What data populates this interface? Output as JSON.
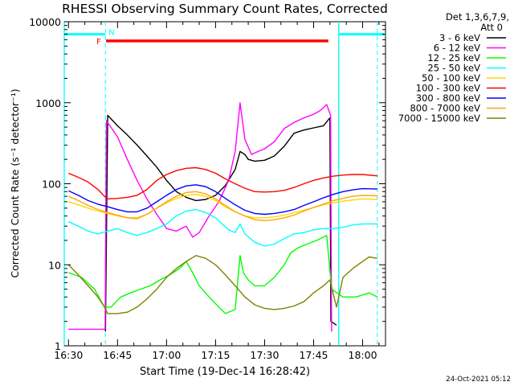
{
  "chart_data": {
    "type": "line",
    "title": "RHESSI Observing Summary Count Rates, Corrected",
    "xlabel": "Start Time (19-Dec-14 16:28:42)",
    "ylabel": "Corrected Count Rate (s⁻¹ detector⁻¹)",
    "y_scale": "log",
    "ylim": [
      1,
      10000
    ],
    "xlim_minutes_after_1630": [
      -1.3,
      97
    ],
    "x_ticks": [
      {
        "minute": 0,
        "label": "16:30"
      },
      {
        "minute": 15,
        "label": "16:45"
      },
      {
        "minute": 30,
        "label": "17:00"
      },
      {
        "minute": 45,
        "label": "17:15"
      },
      {
        "minute": 60,
        "label": "17:30"
      },
      {
        "minute": 75,
        "label": "17:45"
      },
      {
        "minute": 90,
        "label": "18:00"
      }
    ],
    "y_ticks": [
      {
        "value": 1,
        "label": "1"
      },
      {
        "value": 10,
        "label": "10"
      },
      {
        "value": 100,
        "label": "100"
      },
      {
        "value": 1000,
        "label": "1000"
      },
      {
        "value": 10000,
        "label": "10000"
      }
    ],
    "legend_header": [
      "Det 1,3,6,7,9,",
      "Att 0"
    ],
    "legend_position": "right, outside plot",
    "footer": "24-Oct-2021 05:12",
    "flags": {
      "night_label": "N",
      "night_color": "#00ffff",
      "night_intervals": [
        [
          -1.3,
          11.3
        ],
        [
          82.7,
          97
        ]
      ],
      "night_level": 7000,
      "flare_label": "F",
      "flare_color": "#ff0000",
      "flare_interval": [
        11.5,
        79.5
      ],
      "flare_level": 5800,
      "dashed_markers": [
        11.3,
        82.7,
        94.5
      ]
    },
    "series": [
      {
        "name": "3 - 6 keV",
        "color": "#000000",
        "points": [
          [
            11.3,
            1.5
          ],
          [
            12,
            700
          ],
          [
            15,
            520
          ],
          [
            18,
            400
          ],
          [
            21,
            300
          ],
          [
            24,
            220
          ],
          [
            27,
            160
          ],
          [
            30,
            110
          ],
          [
            33,
            80
          ],
          [
            36,
            68
          ],
          [
            39,
            62
          ],
          [
            42,
            64
          ],
          [
            45,
            72
          ],
          [
            48,
            95
          ],
          [
            51,
            150
          ],
          [
            52.5,
            250
          ],
          [
            54,
            230
          ],
          [
            55,
            200
          ],
          [
            57,
            190
          ],
          [
            60,
            195
          ],
          [
            63,
            220
          ],
          [
            66,
            290
          ],
          [
            69,
            420
          ],
          [
            72,
            460
          ],
          [
            75,
            490
          ],
          [
            78,
            520
          ],
          [
            80,
            650
          ],
          [
            80.3,
            2
          ],
          [
            82,
            1.8
          ]
        ]
      },
      {
        "name": "6 - 12 keV",
        "color": "#ff00ff",
        "points": [
          [
            0,
            1.6
          ],
          [
            11.2,
            1.6
          ],
          [
            11.6,
            600
          ],
          [
            15,
            380
          ],
          [
            18,
            200
          ],
          [
            21,
            110
          ],
          [
            24,
            65
          ],
          [
            27,
            42
          ],
          [
            30,
            28
          ],
          [
            33,
            26
          ],
          [
            36,
            30
          ],
          [
            38,
            22
          ],
          [
            40,
            25
          ],
          [
            43,
            40
          ],
          [
            46,
            60
          ],
          [
            49,
            110
          ],
          [
            51,
            250
          ],
          [
            52.5,
            1000
          ],
          [
            54,
            350
          ],
          [
            56,
            230
          ],
          [
            58,
            250
          ],
          [
            60,
            270
          ],
          [
            63,
            330
          ],
          [
            66,
            480
          ],
          [
            69,
            570
          ],
          [
            72,
            650
          ],
          [
            75,
            720
          ],
          [
            77,
            800
          ],
          [
            79,
            950
          ],
          [
            80.2,
            700
          ],
          [
            80.5,
            1.5
          ]
        ]
      },
      {
        "name": "12 - 25 keV",
        "color": "#00ff00",
        "points": [
          [
            0,
            8
          ],
          [
            4,
            7
          ],
          [
            8,
            5
          ],
          [
            11,
            3
          ],
          [
            13,
            3
          ],
          [
            16,
            4
          ],
          [
            19,
            4.5
          ],
          [
            22,
            5
          ],
          [
            25,
            5.5
          ],
          [
            28,
            6.5
          ],
          [
            31,
            7.5
          ],
          [
            34,
            9
          ],
          [
            36,
            11
          ],
          [
            38,
            8
          ],
          [
            40,
            5.5
          ],
          [
            43,
            4
          ],
          [
            46,
            3
          ],
          [
            48,
            2.5
          ],
          [
            51,
            2.8
          ],
          [
            52.5,
            13
          ],
          [
            53.5,
            8
          ],
          [
            55,
            6.5
          ],
          [
            57,
            5.5
          ],
          [
            60,
            5.5
          ],
          [
            63,
            7
          ],
          [
            66,
            10
          ],
          [
            68,
            14
          ],
          [
            70,
            16
          ],
          [
            73,
            18
          ],
          [
            76,
            20
          ],
          [
            79,
            23
          ],
          [
            80.5,
            5
          ],
          [
            84,
            4
          ],
          [
            88,
            4
          ],
          [
            92,
            4.5
          ],
          [
            94.5,
            4
          ]
        ]
      },
      {
        "name": "25 - 50 keV",
        "color": "#00ffff",
        "points": [
          [
            0,
            34
          ],
          [
            3,
            30
          ],
          [
            6,
            26
          ],
          [
            9,
            24
          ],
          [
            12,
            26
          ],
          [
            15,
            28
          ],
          [
            18,
            25
          ],
          [
            21,
            23
          ],
          [
            24,
            25
          ],
          [
            27,
            28
          ],
          [
            30,
            32
          ],
          [
            33,
            40
          ],
          [
            36,
            46
          ],
          [
            39,
            48
          ],
          [
            42,
            44
          ],
          [
            45,
            38
          ],
          [
            47,
            32
          ],
          [
            49,
            27
          ],
          [
            51,
            25
          ],
          [
            52.5,
            32
          ],
          [
            54,
            24
          ],
          [
            57,
            19
          ],
          [
            60,
            17
          ],
          [
            63,
            18
          ],
          [
            66,
            21
          ],
          [
            69,
            24
          ],
          [
            72,
            25
          ],
          [
            75,
            27
          ],
          [
            78,
            28
          ],
          [
            81,
            28
          ],
          [
            84,
            29
          ],
          [
            87,
            31
          ],
          [
            90,
            32
          ],
          [
            94.5,
            32
          ]
        ]
      },
      {
        "name": "50 - 100 keV",
        "color": "#ffd700",
        "points": [
          [
            0,
            60
          ],
          [
            3,
            55
          ],
          [
            6,
            50
          ],
          [
            9,
            46
          ],
          [
            12,
            43
          ],
          [
            15,
            40
          ],
          [
            18,
            38
          ],
          [
            21,
            38
          ],
          [
            24,
            42
          ],
          [
            27,
            50
          ],
          [
            30,
            58
          ],
          [
            33,
            66
          ],
          [
            36,
            72
          ],
          [
            39,
            74
          ],
          [
            42,
            70
          ],
          [
            45,
            62
          ],
          [
            48,
            52
          ],
          [
            51,
            45
          ],
          [
            54,
            40
          ],
          [
            57,
            38
          ],
          [
            60,
            38
          ],
          [
            63,
            39
          ],
          [
            66,
            41
          ],
          [
            69,
            44
          ],
          [
            72,
            47
          ],
          [
            75,
            51
          ],
          [
            78,
            55
          ],
          [
            81,
            58
          ],
          [
            84,
            61
          ],
          [
            87,
            63
          ],
          [
            90,
            65
          ],
          [
            94.5,
            64
          ]
        ]
      },
      {
        "name": "100 - 300 keV",
        "color": "#ff0000",
        "points": [
          [
            0,
            135
          ],
          [
            3,
            120
          ],
          [
            6,
            105
          ],
          [
            9,
            85
          ],
          [
            11,
            70
          ],
          [
            12,
            65
          ],
          [
            15,
            66
          ],
          [
            18,
            68
          ],
          [
            21,
            72
          ],
          [
            24,
            85
          ],
          [
            27,
            110
          ],
          [
            30,
            130
          ],
          [
            33,
            145
          ],
          [
            36,
            155
          ],
          [
            39,
            158
          ],
          [
            42,
            150
          ],
          [
            45,
            135
          ],
          [
            48,
            115
          ],
          [
            51,
            100
          ],
          [
            54,
            88
          ],
          [
            57,
            80
          ],
          [
            60,
            79
          ],
          [
            63,
            80
          ],
          [
            66,
            83
          ],
          [
            69,
            90
          ],
          [
            72,
            100
          ],
          [
            75,
            110
          ],
          [
            78,
            118
          ],
          [
            81,
            124
          ],
          [
            84,
            128
          ],
          [
            87,
            130
          ],
          [
            90,
            130
          ],
          [
            94.5,
            125
          ]
        ]
      },
      {
        "name": "300 - 800 keV",
        "color": "#0000ff",
        "points": [
          [
            0,
            82
          ],
          [
            3,
            72
          ],
          [
            6,
            62
          ],
          [
            9,
            56
          ],
          [
            12,
            52
          ],
          [
            15,
            48
          ],
          [
            18,
            45
          ],
          [
            21,
            45
          ],
          [
            24,
            50
          ],
          [
            27,
            60
          ],
          [
            30,
            72
          ],
          [
            33,
            85
          ],
          [
            36,
            94
          ],
          [
            39,
            97
          ],
          [
            42,
            92
          ],
          [
            45,
            80
          ],
          [
            48,
            66
          ],
          [
            51,
            55
          ],
          [
            54,
            47
          ],
          [
            57,
            43
          ],
          [
            60,
            42
          ],
          [
            63,
            43
          ],
          [
            66,
            45
          ],
          [
            69,
            48
          ],
          [
            72,
            54
          ],
          [
            75,
            60
          ],
          [
            78,
            67
          ],
          [
            81,
            74
          ],
          [
            84,
            80
          ],
          [
            87,
            84
          ],
          [
            90,
            87
          ],
          [
            94.5,
            86
          ]
        ]
      },
      {
        "name": "800 - 7000 keV",
        "color": "#ffa500",
        "points": [
          [
            0,
            70
          ],
          [
            3,
            62
          ],
          [
            6,
            54
          ],
          [
            9,
            48
          ],
          [
            12,
            44
          ],
          [
            15,
            41
          ],
          [
            18,
            38
          ],
          [
            21,
            37
          ],
          [
            24,
            42
          ],
          [
            27,
            50
          ],
          [
            30,
            60
          ],
          [
            33,
            70
          ],
          [
            36,
            78
          ],
          [
            39,
            80
          ],
          [
            42,
            75
          ],
          [
            45,
            65
          ],
          [
            48,
            54
          ],
          [
            51,
            45
          ],
          [
            54,
            40
          ],
          [
            57,
            36
          ],
          [
            60,
            35
          ],
          [
            63,
            36
          ],
          [
            66,
            38
          ],
          [
            69,
            41
          ],
          [
            72,
            46
          ],
          [
            75,
            51
          ],
          [
            78,
            56
          ],
          [
            81,
            62
          ],
          [
            84,
            66
          ],
          [
            87,
            70
          ],
          [
            90,
            72
          ],
          [
            94.5,
            71
          ]
        ]
      },
      {
        "name": "7000 - 15000 keV",
        "color": "#808000",
        "points": [
          [
            0,
            10
          ],
          [
            3,
            7.5
          ],
          [
            6,
            5.5
          ],
          [
            9,
            4
          ],
          [
            11,
            3
          ],
          [
            12,
            2.5
          ],
          [
            15,
            2.5
          ],
          [
            18,
            2.6
          ],
          [
            21,
            3
          ],
          [
            24,
            3.8
          ],
          [
            27,
            5
          ],
          [
            30,
            7
          ],
          [
            33,
            9
          ],
          [
            36,
            11
          ],
          [
            39,
            13
          ],
          [
            42,
            12
          ],
          [
            45,
            10
          ],
          [
            48,
            7.5
          ],
          [
            51,
            5.5
          ],
          [
            54,
            4
          ],
          [
            57,
            3.2
          ],
          [
            60,
            2.9
          ],
          [
            63,
            2.8
          ],
          [
            66,
            2.9
          ],
          [
            69,
            3.1
          ],
          [
            72,
            3.5
          ],
          [
            75,
            4.5
          ],
          [
            78,
            5.5
          ],
          [
            80,
            6.5
          ],
          [
            82,
            3
          ],
          [
            84,
            7
          ],
          [
            87,
            9
          ],
          [
            90,
            11
          ],
          [
            92,
            12.5
          ],
          [
            94.5,
            12
          ]
        ]
      }
    ]
  }
}
